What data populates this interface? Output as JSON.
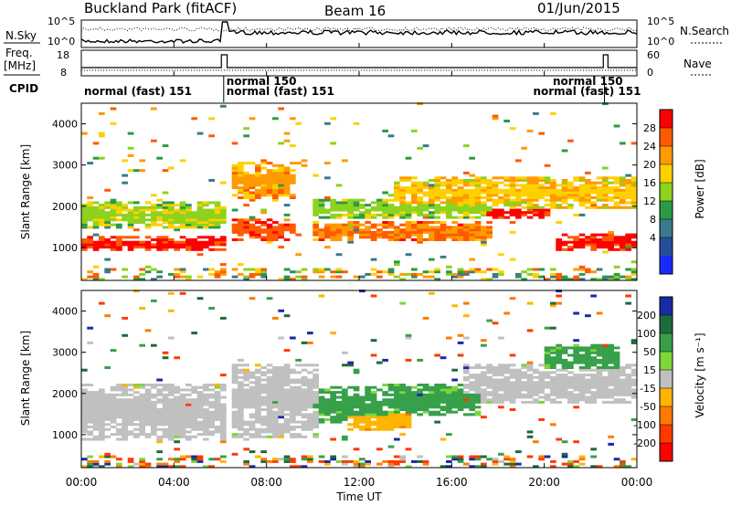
{
  "header": {
    "title": "Buckland Park (fitACF)",
    "beam": "Beam 16",
    "date": "01/Jun/2015"
  },
  "top_panels": {
    "nsky_label": "N.Sky",
    "nsky_ticks": [
      "10^5",
      "10^0"
    ],
    "nsearch_label": "N.Search",
    "nsearch_ticks": [
      "10^5",
      "10^0"
    ],
    "freq_label": "Freq.",
    "freq_unit": "[MHz]",
    "freq_ticks": [
      "18",
      "8"
    ],
    "nave_label": "Nave",
    "nave_ticks": [
      "60",
      "0"
    ],
    "cpid_label": "CPID",
    "cpid_segments": [
      {
        "text": "normal (fast) 151",
        "start_hour": 0.0,
        "row": 1
      },
      {
        "text": "normal 150",
        "start_hour": 6.15,
        "row": 0
      },
      {
        "text": "normal (fast) 151",
        "start_hour": 6.15,
        "row": 1
      },
      {
        "text": "normal 150",
        "start_hour": 20.25,
        "row": 0
      },
      {
        "text": "normal (fast) 151",
        "start_hour": 19.4,
        "row": 1
      }
    ],
    "mode_change_hours": [
      6.15,
      22.6
    ]
  },
  "power_panel": {
    "ylabel": "Slant Range [km]",
    "colorbar_label": "Power [dB]",
    "colorbar_ticks": [
      "28",
      "24",
      "20",
      "16",
      "12",
      "8",
      "4"
    ],
    "colorbar_colors": [
      "#ff0000",
      "#ff5a00",
      "#ff9a00",
      "#ffd000",
      "#8cd21e",
      "#2a9a46",
      "#3a7a8a",
      "#274e9a",
      "#1a2aff"
    ]
  },
  "velocity_panel": {
    "ylabel": "Slant Range [km]",
    "colorbar_label": "Velocity [m s⁻¹]",
    "colorbar_ticks": [
      "200",
      "100",
      "50",
      "15",
      "-15",
      "-50",
      "-100",
      "-200"
    ],
    "colorbar_colors": [
      "#1a2aa8",
      "#1f6a3a",
      "#36a04a",
      "#7ed63a",
      "#c0c0c0",
      "#ffb400",
      "#ff7a00",
      "#ff3a00",
      "#ff0000"
    ]
  },
  "time_axis": {
    "xlabel": "Time UT",
    "ticks": [
      "00:00",
      "04:00",
      "08:00",
      "12:00",
      "16:00",
      "20:00",
      "00:00"
    ]
  },
  "chart_data": {
    "type": "heatmap",
    "title": "Buckland Park (fitACF)",
    "subtitle": "Beam 16 — 01/Jun/2015",
    "xlabel": "Time UT",
    "ylabel": "Slant Range [km]",
    "xlim_hours": [
      0,
      24
    ],
    "ylim": [
      200,
      4500
    ],
    "yticks": [
      1000,
      2000,
      3000,
      4000
    ],
    "power_scale_db": [
      0,
      32
    ],
    "velocity_scale_ms": [
      -250,
      250
    ],
    "power_echo_bands": [
      {
        "t0": 0.0,
        "t1": 6.0,
        "r_center": 1050,
        "r_width": 350,
        "db": 29
      },
      {
        "t0": 0.0,
        "t1": 6.0,
        "r_center": 1750,
        "r_width": 700,
        "db": 15
      },
      {
        "t0": 6.3,
        "t1": 9.0,
        "r_center": 1400,
        "r_width": 500,
        "db": 27
      },
      {
        "t0": 6.3,
        "t1": 9.0,
        "r_center": 2600,
        "r_width": 900,
        "db": 22
      },
      {
        "t0": 10.0,
        "t1": 17.5,
        "r_center": 1350,
        "r_width": 500,
        "db": 24
      },
      {
        "t0": 10.0,
        "t1": 17.5,
        "r_center": 1900,
        "r_width": 500,
        "db": 14
      },
      {
        "t0": 13.5,
        "t1": 24.0,
        "r_center": 2300,
        "r_width": 800,
        "db": 19
      },
      {
        "t0": 17.5,
        "t1": 20.0,
        "r_center": 1800,
        "r_width": 300,
        "db": 29
      },
      {
        "t0": 20.5,
        "t1": 24.0,
        "r_center": 1100,
        "r_width": 400,
        "db": 29
      }
    ],
    "velocity_echo_regions": [
      {
        "t0": 0.0,
        "t1": 6.0,
        "r_center": 1500,
        "r_width": 1400,
        "ms": 0
      },
      {
        "t0": 6.3,
        "t1": 10.0,
        "r_center": 1800,
        "r_width": 1800,
        "ms": 0
      },
      {
        "t0": 10.0,
        "t1": 13.0,
        "r_center": 1700,
        "r_width": 900,
        "ms": 40
      },
      {
        "t0": 11.5,
        "t1": 14.0,
        "r_center": 1300,
        "r_width": 500,
        "ms": -40
      },
      {
        "t0": 13.0,
        "t1": 17.0,
        "r_center": 1800,
        "r_width": 800,
        "ms": 40
      },
      {
        "t0": 16.5,
        "t1": 24.0,
        "r_center": 2200,
        "r_width": 1000,
        "ms": 0
      },
      {
        "t0": 20.0,
        "t1": 23.0,
        "r_center": 2800,
        "r_width": 700,
        "ms": 40
      }
    ],
    "grid": false,
    "legend": "right colorbars"
  }
}
